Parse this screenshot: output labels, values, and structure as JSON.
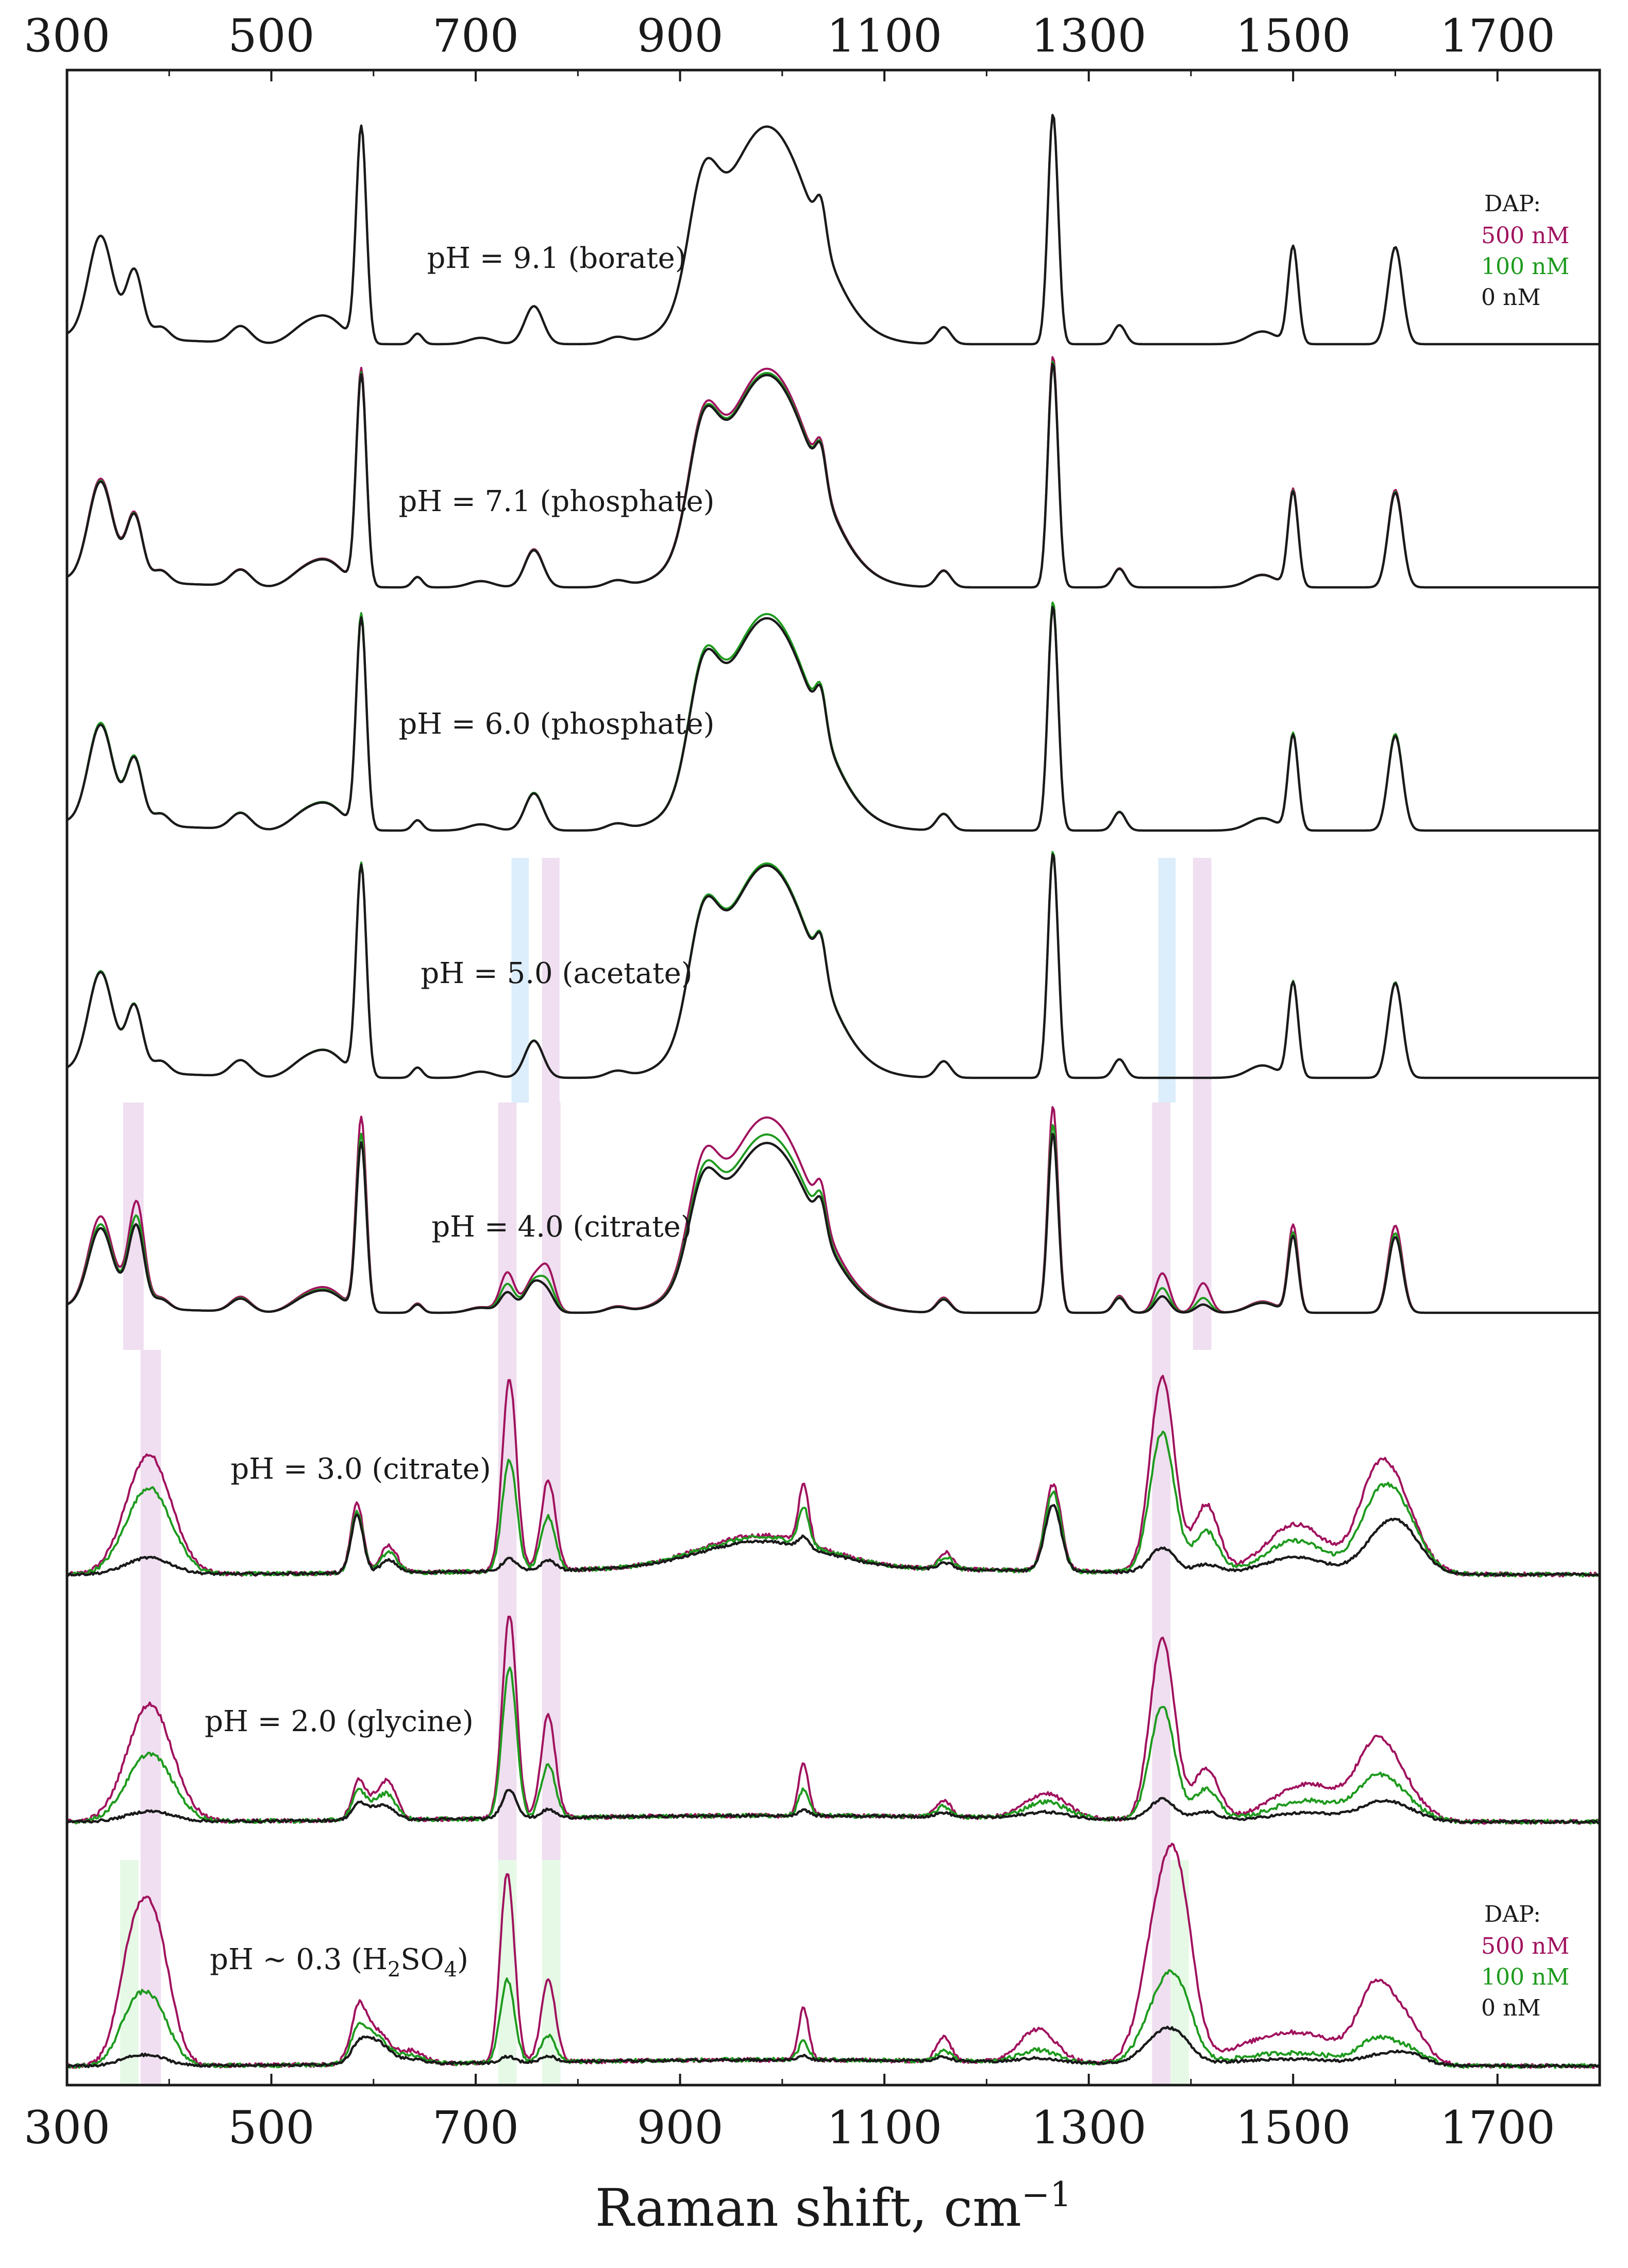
{
  "chart_data": {
    "type": "line",
    "xlabel": "Raman shift, cm",
    "xlabel_sup": "−1",
    "xlim": [
      300,
      1800
    ],
    "xticks": [
      300,
      500,
      700,
      900,
      1100,
      1300,
      1500,
      1700
    ],
    "grid": false,
    "legend": {
      "title": "DAP:",
      "placement": "right",
      "entries": [
        {
          "name": "500 nM",
          "color": "#a0125e"
        },
        {
          "name": "100 nM",
          "color": "#1e9a1e"
        },
        {
          "name": "0 nM",
          "color": "#1a1a1a"
        }
      ]
    },
    "highlight_colors": {
      "violet": "#efdff0",
      "blue": "#dcedfb",
      "green": "#e6f9e6"
    },
    "panels": [
      {
        "label": "pH = 9.1 (borate)",
        "dap_response": [
          1.0,
          1.0,
          1.0
        ]
      },
      {
        "label": "pH = 7.1 (phosphate)",
        "dap_response": [
          1.03,
          1.01,
          1.0
        ]
      },
      {
        "label": "pH = 6.0 (phosphate)",
        "dap_response": [
          1.0,
          1.02,
          1.0
        ]
      },
      {
        "label": "pH = 5.0 (acetate)",
        "dap_response": [
          1.0,
          1.01,
          1.0
        ],
        "highlights": [
          [
            735,
            752,
            "blue"
          ],
          [
            765,
            782,
            "violet"
          ],
          [
            1368,
            1385,
            "blue"
          ],
          [
            1402,
            1420,
            "violet"
          ]
        ]
      },
      {
        "label": "pH = 4.0 (citrate)",
        "dap_response": [
          1.15,
          1.05,
          1.0
        ],
        "highlights": [
          [
            355,
            375,
            "violet"
          ],
          [
            722,
            740,
            "violet"
          ],
          [
            765,
            783,
            "violet"
          ],
          [
            1362,
            1380,
            "violet"
          ],
          [
            1402,
            1420,
            "violet"
          ]
        ],
        "markers": [
          {
            "x": 370,
            "height": [
              0.3,
              0.24,
              0.2
            ]
          },
          {
            "x": 731,
            "height": [
              0.24,
              0.17,
              0.12
            ]
          },
          {
            "x": 771,
            "height": [
              0.22,
              0.14,
              0.09
            ]
          },
          {
            "x": 1372,
            "height": [
              0.24,
              0.15,
              0.1
            ]
          },
          {
            "x": 1412,
            "height": [
              0.18,
              0.09,
              0.05
            ]
          }
        ]
      },
      {
        "label": "pH = 3.0 (citrate)",
        "dap_response": [
          1.0,
          0.85,
          0.7
        ],
        "highlights": [
          [
            372,
            392,
            "violet"
          ],
          [
            722,
            740,
            "violet"
          ],
          [
            765,
            783,
            "violet"
          ],
          [
            1362,
            1380,
            "violet"
          ]
        ],
        "peaks": [
          {
            "x": 380,
            "w": 22,
            "h": [
              0.58,
              0.42,
              0.08
            ]
          },
          {
            "x": 584,
            "w": 6,
            "h": [
              0.34,
              0.3,
              0.28
            ]
          },
          {
            "x": 615,
            "w": 8,
            "h": [
              0.13,
              0.1,
              0.06
            ]
          },
          {
            "x": 733,
            "w": 7,
            "h": [
              0.93,
              0.54,
              0.06
            ]
          },
          {
            "x": 771,
            "w": 7,
            "h": [
              0.44,
              0.26,
              0.05
            ]
          },
          {
            "x": 980,
            "w": 60,
            "h": [
              0.16,
              0.15,
              0.13
            ]
          },
          {
            "x": 1021,
            "w": 5,
            "h": [
              0.28,
              0.18,
              0.05
            ]
          },
          {
            "x": 1160,
            "w": 7,
            "h": [
              0.08,
              0.06,
              0.03
            ]
          },
          {
            "x": 1265,
            "w": 8,
            "h": [
              0.42,
              0.38,
              0.32
            ]
          },
          {
            "x": 1372,
            "w": 12,
            "h": [
              0.95,
              0.68,
              0.12
            ]
          },
          {
            "x": 1415,
            "w": 12,
            "h": [
              0.33,
              0.2,
              0.04
            ]
          },
          {
            "x": 1503,
            "w": 30,
            "h": [
              0.24,
              0.16,
              0.08
            ]
          },
          {
            "x": 1580,
            "w": 18,
            "h": [
              0.38,
              0.26,
              0.1
            ]
          },
          {
            "x": 1605,
            "w": 20,
            "h": [
              0.3,
              0.28,
              0.22
            ]
          }
        ]
      },
      {
        "label": "pH = 2.0 (glycine)",
        "dap_response": [
          1.0,
          0.8,
          0.6
        ],
        "highlights": [
          [
            372,
            392,
            "violet"
          ],
          [
            722,
            740,
            "violet"
          ],
          [
            765,
            783,
            "violet"
          ],
          [
            1362,
            1380,
            "violet"
          ]
        ],
        "peaks": [
          {
            "x": 381,
            "w": 22,
            "h": [
              0.57,
              0.33,
              0.05
            ]
          },
          {
            "x": 585,
            "w": 6,
            "h": [
              0.14,
              0.1,
              0.05
            ]
          },
          {
            "x": 600,
            "w": 14,
            "h": [
              0.1,
              0.08,
              0.06
            ]
          },
          {
            "x": 615,
            "w": 8,
            "h": [
              0.13,
              0.08,
              0.03
            ]
          },
          {
            "x": 733,
            "w": 7,
            "h": [
              0.98,
              0.73,
              0.14
            ]
          },
          {
            "x": 771,
            "w": 7,
            "h": [
              0.5,
              0.26,
              0.04
            ]
          },
          {
            "x": 1021,
            "w": 5,
            "h": [
              0.25,
              0.13,
              0.03
            ]
          },
          {
            "x": 1158,
            "w": 7,
            "h": [
              0.08,
              0.05,
              0.02
            ]
          },
          {
            "x": 1258,
            "w": 20,
            "h": [
              0.12,
              0.08,
              0.03
            ]
          },
          {
            "x": 1372,
            "w": 12,
            "h": [
              0.88,
              0.55,
              0.1
            ]
          },
          {
            "x": 1415,
            "w": 12,
            "h": [
              0.25,
              0.15,
              0.04
            ]
          },
          {
            "x": 1515,
            "w": 35,
            "h": [
              0.18,
              0.1,
              0.04
            ]
          },
          {
            "x": 1580,
            "w": 18,
            "h": [
              0.3,
              0.16,
              0.06
            ]
          },
          {
            "x": 1605,
            "w": 20,
            "h": [
              0.16,
              0.1,
              0.06
            ]
          }
        ]
      },
      {
        "label": "pH ~ 0.3 (H",
        "label_sub": "2",
        "label_mid": "SO",
        "label_sub2": "4",
        "label_end": ")",
        "dap_response": [
          1.0,
          0.6,
          0.2
        ],
        "highlights": [
          [
            352,
            370,
            "green"
          ],
          [
            372,
            392,
            "violet"
          ],
          [
            722,
            740,
            "green"
          ],
          [
            765,
            783,
            "green"
          ],
          [
            1362,
            1380,
            "violet"
          ],
          [
            1380,
            1398,
            "green"
          ]
        ],
        "peaks": [
          {
            "x": 362,
            "w": 14,
            "h": [
              0.42,
              0.2,
              0.03
            ]
          },
          {
            "x": 385,
            "w": 16,
            "h": [
              0.66,
              0.28,
              0.04
            ]
          },
          {
            "x": 585,
            "w": 7,
            "h": [
              0.2,
              0.12,
              0.05
            ]
          },
          {
            "x": 600,
            "w": 14,
            "h": [
              0.17,
              0.14,
              0.12
            ]
          },
          {
            "x": 638,
            "w": 12,
            "h": [
              0.06,
              0.04,
              0.02
            ]
          },
          {
            "x": 731,
            "w": 7,
            "h": [
              0.92,
              0.4,
              0.03
            ]
          },
          {
            "x": 771,
            "w": 7,
            "h": [
              0.4,
              0.13,
              0.03
            ]
          },
          {
            "x": 1021,
            "w": 5,
            "h": [
              0.25,
              0.09,
              0.02
            ]
          },
          {
            "x": 1158,
            "w": 7,
            "h": [
              0.12,
              0.05,
              0.02
            ]
          },
          {
            "x": 1250,
            "w": 18,
            "h": [
              0.16,
              0.06,
              0.02
            ]
          },
          {
            "x": 1372,
            "w": 18,
            "h": [
              0.75,
              0.32,
              0.14
            ]
          },
          {
            "x": 1390,
            "w": 14,
            "h": [
              0.48,
              0.2,
              0.06
            ]
          },
          {
            "x": 1500,
            "w": 50,
            "h": [
              0.16,
              0.06,
              0.03
            ]
          },
          {
            "x": 1580,
            "w": 16,
            "h": [
              0.32,
              0.1,
              0.03
            ]
          },
          {
            "x": 1610,
            "w": 18,
            "h": [
              0.2,
              0.08,
              0.06
            ]
          }
        ]
      }
    ]
  }
}
